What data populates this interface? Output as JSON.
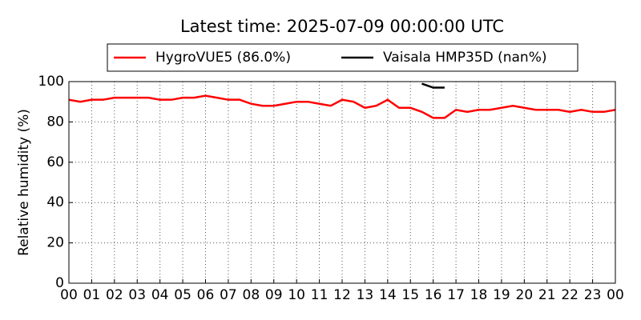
{
  "chart_data": {
    "type": "line",
    "title": "Latest time: 2025-07-09 00:00:00 UTC",
    "y_label": "Relative humidity (%)",
    "x": [
      0,
      0.5,
      1,
      1.5,
      2,
      2.5,
      3,
      3.5,
      4,
      4.5,
      5,
      5.5,
      6,
      6.5,
      7,
      7.5,
      8,
      8.5,
      9,
      9.5,
      10,
      10.5,
      11,
      11.5,
      12,
      12.5,
      13,
      13.5,
      14,
      14.5,
      15,
      15.5,
      16,
      16.5,
      17,
      17.5,
      18,
      18.5,
      19,
      19.5,
      20,
      20.5,
      21,
      21.5,
      22,
      22.5,
      23,
      23.5,
      24
    ],
    "series": [
      {
        "name": "HygroVUE5 (86.0%)",
        "color": "#ff0000",
        "values": [
          91,
          90,
          91,
          91,
          92,
          92,
          92,
          92,
          91,
          91,
          92,
          92,
          93,
          92,
          91,
          91,
          89,
          88,
          88,
          89,
          90,
          90,
          89,
          88,
          91,
          90,
          87,
          88,
          91,
          87,
          87,
          85,
          82,
          82,
          86,
          85,
          86,
          86,
          87,
          88,
          87,
          86,
          86,
          86,
          85,
          86,
          85,
          85,
          86
        ]
      },
      {
        "name": "Vaisala HMP35D (nan%)",
        "color": "#000000",
        "values": [
          null,
          null,
          null,
          null,
          null,
          null,
          null,
          null,
          null,
          null,
          null,
          null,
          null,
          null,
          null,
          null,
          null,
          null,
          null,
          null,
          null,
          null,
          null,
          null,
          null,
          null,
          null,
          null,
          null,
          null,
          null,
          99,
          97,
          97,
          null,
          null,
          null,
          null,
          null,
          null,
          null,
          null,
          null,
          null,
          null,
          null,
          null,
          null,
          null
        ]
      }
    ],
    "xlim": [
      0,
      24
    ],
    "xticks": [
      {
        "value": 0,
        "label": "00"
      },
      {
        "value": 1,
        "label": "01"
      },
      {
        "value": 2,
        "label": "02"
      },
      {
        "value": 3,
        "label": "03"
      },
      {
        "value": 4,
        "label": "04"
      },
      {
        "value": 5,
        "label": "05"
      },
      {
        "value": 6,
        "label": "06"
      },
      {
        "value": 7,
        "label": "07"
      },
      {
        "value": 8,
        "label": "08"
      },
      {
        "value": 9,
        "label": "09"
      },
      {
        "value": 10,
        "label": "10"
      },
      {
        "value": 11,
        "label": "11"
      },
      {
        "value": 12,
        "label": "12"
      },
      {
        "value": 13,
        "label": "13"
      },
      {
        "value": 14,
        "label": "14"
      },
      {
        "value": 15,
        "label": "15"
      },
      {
        "value": 16,
        "label": "16"
      },
      {
        "value": 17,
        "label": "17"
      },
      {
        "value": 18,
        "label": "18"
      },
      {
        "value": 19,
        "label": "19"
      },
      {
        "value": 20,
        "label": "20"
      },
      {
        "value": 21,
        "label": "21"
      },
      {
        "value": 22,
        "label": "22"
      },
      {
        "value": 23,
        "label": "23"
      },
      {
        "value": 24,
        "label": "00"
      }
    ],
    "ylim": [
      0,
      100
    ],
    "yticks": [
      0,
      20,
      40,
      60,
      80,
      100
    ],
    "grid": true,
    "legend": "top"
  }
}
